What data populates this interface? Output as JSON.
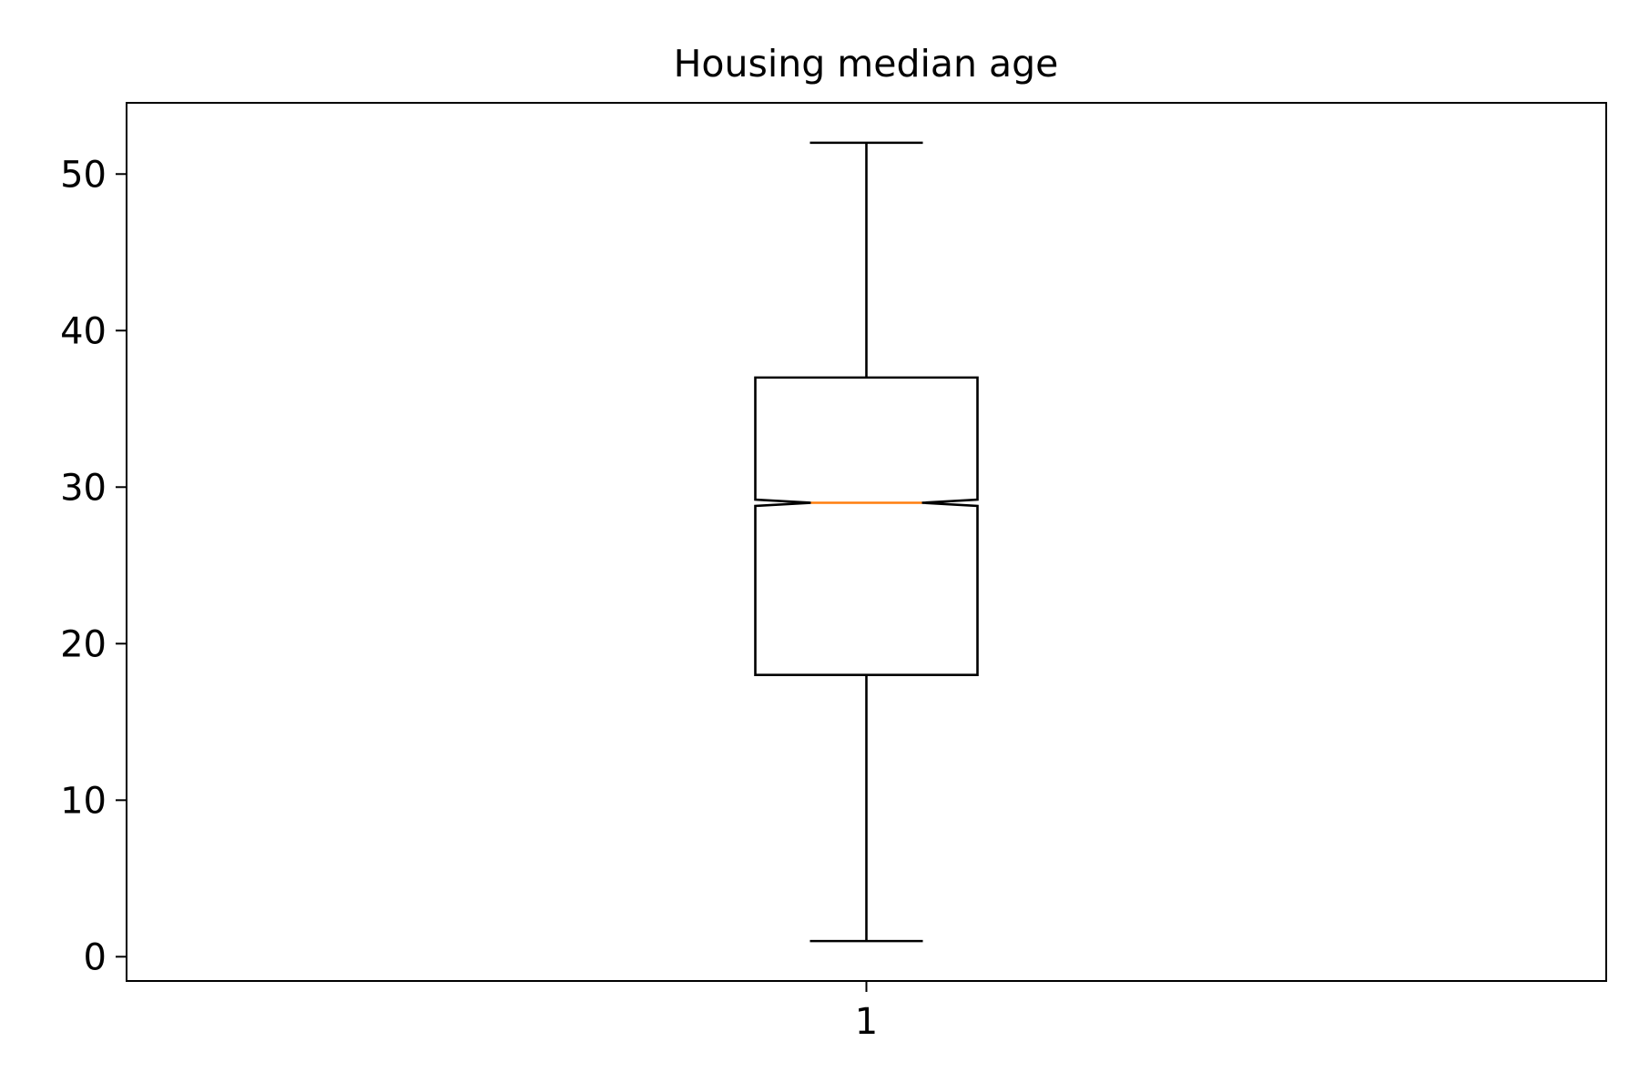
{
  "chart_data": {
    "type": "boxplot",
    "title": "Housing median age",
    "xlabel": "",
    "ylabel": "",
    "categories": [
      "1"
    ],
    "ylim": [
      -1.55,
      54.55
    ],
    "yticks": [
      0,
      10,
      20,
      30,
      40,
      50
    ],
    "ytick_labels": [
      "0",
      "10",
      "20",
      "30",
      "40",
      "50"
    ],
    "notched": true,
    "grid": false,
    "boxes": [
      {
        "label": "1",
        "whisker_low": 1,
        "q1": 18,
        "median": 29,
        "q3": 37,
        "whisker_high": 52,
        "notch_low": 28.8,
        "notch_high": 29.2
      }
    ],
    "colors": {
      "box": "#000000",
      "median": "#ff7f0e",
      "axes": "#000000",
      "background": "#ffffff"
    }
  }
}
